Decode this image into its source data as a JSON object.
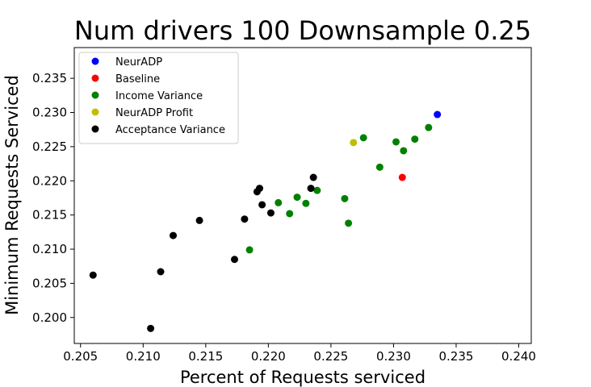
{
  "chart_data": {
    "type": "scatter",
    "title": "Num drivers 100 Downsample 0.25",
    "xlabel": "Percent of Requests serviced",
    "ylabel": "Minimum Requests Serviced",
    "xlim": [
      0.2045,
      0.241
    ],
    "ylim": [
      0.1962,
      0.2395
    ],
    "xticks": [
      "0.205",
      "0.210",
      "0.215",
      "0.220",
      "0.225",
      "0.230",
      "0.235",
      "0.240"
    ],
    "yticks": [
      "0.200",
      "0.205",
      "0.210",
      "0.215",
      "0.220",
      "0.225",
      "0.230",
      "0.235"
    ],
    "legend_position": "top-left",
    "series": [
      {
        "name": "NeurADP",
        "color": "#0000ff",
        "points": [
          [
            0.2335,
            0.2297
          ]
        ]
      },
      {
        "name": "Baseline",
        "color": "#ff0000",
        "points": [
          [
            0.2307,
            0.2205
          ]
        ]
      },
      {
        "name": "Income Variance",
        "color": "#008000",
        "points": [
          [
            0.2185,
            0.2099
          ],
          [
            0.2208,
            0.2168
          ],
          [
            0.2217,
            0.2152
          ],
          [
            0.2223,
            0.2176
          ],
          [
            0.223,
            0.2167
          ],
          [
            0.2239,
            0.2186
          ],
          [
            0.2261,
            0.2174
          ],
          [
            0.2264,
            0.2138
          ],
          [
            0.2276,
            0.2263
          ],
          [
            0.2289,
            0.222
          ],
          [
            0.2302,
            0.2257
          ],
          [
            0.2308,
            0.2244
          ],
          [
            0.2317,
            0.2261
          ],
          [
            0.2328,
            0.2278
          ]
        ]
      },
      {
        "name": "NeurADP Profit",
        "color": "#bfbf00",
        "points": [
          [
            0.2268,
            0.2256
          ]
        ]
      },
      {
        "name": "Acceptance Variance",
        "color": "#000000",
        "points": [
          [
            0.206,
            0.2062
          ],
          [
            0.2106,
            0.1984
          ],
          [
            0.2114,
            0.2067
          ],
          [
            0.2124,
            0.212
          ],
          [
            0.2145,
            0.2142
          ],
          [
            0.2173,
            0.2085
          ],
          [
            0.2181,
            0.2144
          ],
          [
            0.2191,
            0.2184
          ],
          [
            0.2193,
            0.2189
          ],
          [
            0.2195,
            0.2165
          ],
          [
            0.2202,
            0.2153
          ],
          [
            0.2234,
            0.2189
          ],
          [
            0.2236,
            0.2205
          ]
        ]
      }
    ]
  }
}
